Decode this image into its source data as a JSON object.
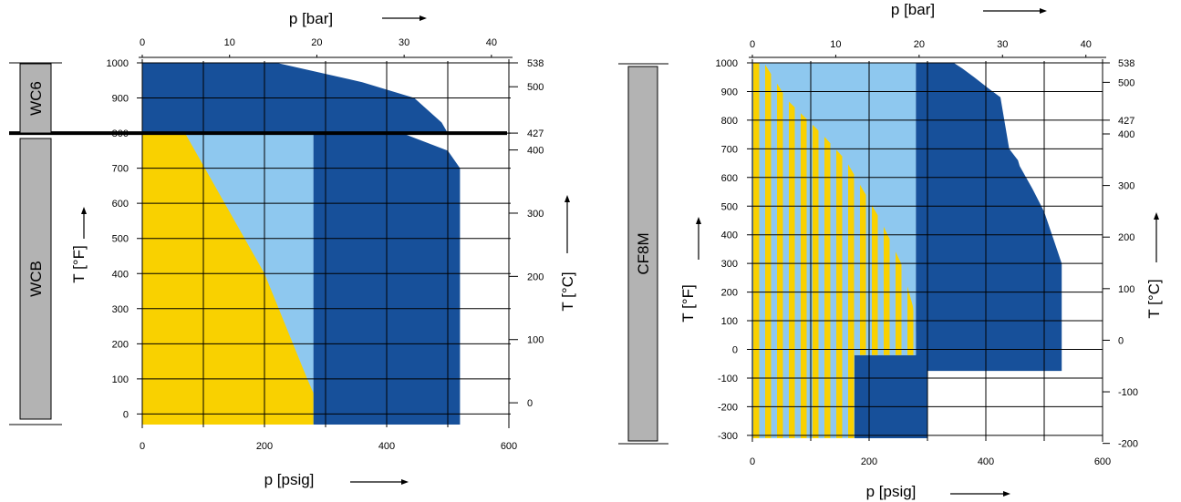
{
  "colors": {
    "yellow": "#f9d100",
    "light_blue": "#8ec8ef",
    "dark_blue": "#17509a",
    "material_bar": "#b3b3b3",
    "grid": "#000000"
  },
  "chart_data": [
    {
      "type": "area",
      "materials": [
        "WC6",
        "WCB"
      ],
      "material_bands_F": [
        [
          800,
          1000
        ],
        [
          -30,
          800
        ]
      ],
      "top_axis": {
        "label": "p [bar]",
        "range": [
          0,
          42
        ],
        "ticks": [
          "0",
          "10",
          "20",
          "30",
          "40"
        ]
      },
      "bottom_axis": {
        "label": "p [psig]",
        "range": [
          0,
          600
        ],
        "ticks": [
          "0",
          "200",
          "400",
          "600"
        ]
      },
      "left_axis": {
        "label": "T [°F]",
        "range": [
          -30,
          1000
        ],
        "ticks": [
          "0",
          "100",
          "200",
          "300",
          "400",
          "500",
          "600",
          "700",
          "800",
          "900",
          "1000"
        ]
      },
      "right_axis": {
        "label": "T [°C]",
        "ticks": [
          {
            "text": "538",
            "value_F": 1000
          },
          {
            "text": "500",
            "value_F": 932
          },
          {
            "text": "427",
            "value_F": 800
          },
          {
            "text": "400",
            "value_F": 752
          },
          {
            "text": "300",
            "value_F": 572
          },
          {
            "text": "200",
            "value_F": 392
          },
          {
            "text": "100",
            "value_F": 212
          },
          {
            "text": "0",
            "value_F": 32
          }
        ]
      },
      "separator_F": 800,
      "grid_psig": [
        100,
        200,
        300,
        400,
        500,
        600
      ],
      "grid_F": [
        0,
        100,
        200,
        300,
        400,
        500,
        600,
        700,
        800,
        900,
        1000
      ],
      "regions": [
        {
          "color": "dark_blue",
          "points": [
            [
              0,
              800
            ],
            [
              0,
              1000
            ],
            [
              220,
              1000
            ],
            [
              360,
              945
            ],
            [
              445,
              900
            ],
            [
              490,
              830
            ],
            [
              500,
              800
            ]
          ]
        },
        {
          "color": "dark_blue",
          "points": [
            [
              280,
              -30
            ],
            [
              280,
              800
            ],
            [
              425,
              800
            ],
            [
              500,
              750
            ],
            [
              520,
              700
            ],
            [
              520,
              -30
            ]
          ]
        },
        {
          "color": "light_blue",
          "points": [
            [
              0,
              -30
            ],
            [
              0,
              800
            ],
            [
              280,
              800
            ],
            [
              280,
              -30
            ]
          ]
        },
        {
          "color": "yellow",
          "points": [
            [
              0,
              -30
            ],
            [
              0,
              800
            ],
            [
              70,
              800
            ],
            [
              200,
              400
            ],
            [
              270,
              100
            ],
            [
              280,
              60
            ],
            [
              280,
              -30
            ]
          ]
        }
      ]
    },
    {
      "type": "area",
      "materials": [
        "CF8M"
      ],
      "material_bands_F": [
        [
          -300,
          1000
        ]
      ],
      "top_axis": {
        "label": "p [bar]",
        "range": [
          0,
          42
        ],
        "ticks": [
          "0",
          "10",
          "20",
          "30",
          "40"
        ]
      },
      "bottom_axis": {
        "label": "p [psig]",
        "range": [
          0,
          600
        ],
        "ticks": [
          "0",
          "200",
          "400",
          "600"
        ]
      },
      "left_axis": {
        "label": "T [°F]",
        "range": [
          -310,
          1000
        ],
        "ticks": [
          "1000",
          "900",
          "800",
          "700",
          "600",
          "500",
          "400",
          "300",
          "200",
          "100",
          "0",
          "-100",
          "-200",
          "-300"
        ]
      },
      "right_axis": {
        "label": "T [°C]",
        "ticks": [
          {
            "text": "538",
            "value_F": 1000
          },
          {
            "text": "500",
            "value_F": 932
          },
          {
            "text": "427",
            "value_F": 800
          },
          {
            "text": "400",
            "value_F": 752
          },
          {
            "text": "300",
            "value_F": 572
          },
          {
            "text": "200",
            "value_F": 392
          },
          {
            "text": "100",
            "value_F": 212
          },
          {
            "text": "0",
            "value_F": 32
          },
          {
            "text": "-100",
            "value_F": -148
          },
          {
            "text": "-200",
            "value_F": -328
          }
        ]
      },
      "grid_psig": [
        100,
        200,
        300,
        400,
        500,
        600
      ],
      "grid_F": [
        -300,
        -200,
        -100,
        0,
        100,
        200,
        300,
        400,
        500,
        600,
        700,
        800,
        900,
        1000
      ],
      "regions": [
        {
          "color": "dark_blue",
          "points": [
            [
              280,
              -75
            ],
            [
              280,
              1000
            ],
            [
              345,
              1000
            ],
            [
              360,
              980
            ],
            [
              380,
              950
            ],
            [
              405,
              910
            ],
            [
              425,
              880
            ],
            [
              430,
              820
            ],
            [
              440,
              700
            ],
            [
              455,
              660
            ],
            [
              458,
              640
            ],
            [
              480,
              560
            ],
            [
              500,
              480
            ],
            [
              515,
              390
            ],
            [
              530,
              300
            ],
            [
              530,
              -75
            ]
          ]
        },
        {
          "color": "dark_blue",
          "points": [
            [
              175,
              -310
            ],
            [
              175,
              -20
            ],
            [
              300,
              -20
            ],
            [
              300,
              -310
            ]
          ]
        },
        {
          "color": "light_blue",
          "points": [
            [
              0,
              -20
            ],
            [
              0,
              1000
            ],
            [
              280,
              1000
            ],
            [
              280,
              -20
            ]
          ]
        },
        {
          "color": "yellow",
          "points": [
            [
              0,
              -310
            ],
            [
              0,
              1000
            ],
            [
              20,
              1000
            ],
            [
              60,
              870
            ],
            [
              120,
              750
            ],
            [
              160,
              660
            ],
            [
              220,
              450
            ],
            [
              255,
              300
            ],
            [
              275,
              150
            ],
            [
              280,
              60
            ],
            [
              280,
              -20
            ],
            [
              175,
              -20
            ],
            [
              175,
              -310
            ]
          ]
        }
      ]
    }
  ]
}
